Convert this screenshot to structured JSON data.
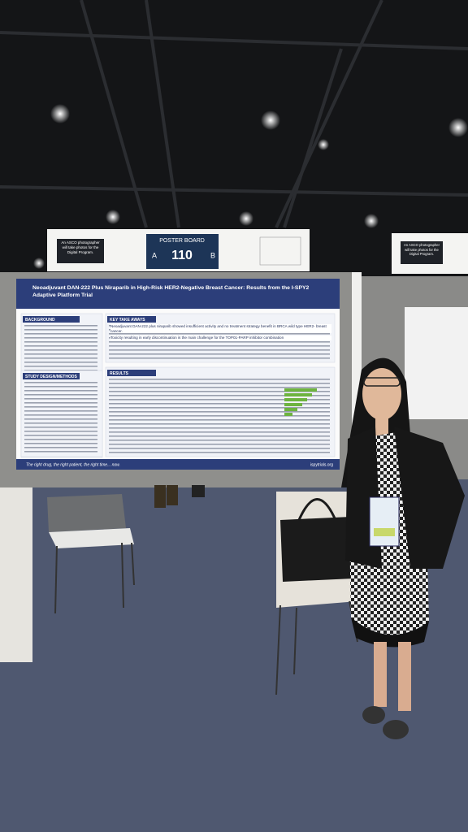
{
  "signs": {
    "left_note": "An ASCO photographer will take photos for the Digital Program.",
    "board_label": "POSTER BOARD",
    "side_a": "A",
    "board_number": "110",
    "side_b": "B",
    "right_note": "An ASCO photographer will take photos for the Digital Program."
  },
  "poster": {
    "title": "Neoadjuvant DAN-222 Plus Niraparib in High-Risk HER2-Negative Breast Cancer: Results from the I-SPY2 Adaptive Platform Trial",
    "sections": [
      "BACKGROUND",
      "KEY TAKE AWAYS",
      "RESULTS",
      "STUDY DESIGN/METHODS"
    ],
    "takeaways": [
      "Neoadjuvant DAN-222 plus niraparib showed insufficient activity and no treatment strategy benefit in BRCA wild type HER2- breast cancer.",
      "Toxicity resulting in early discontinuation is the main challenge for the TOP01-PARP inhibitor combination"
    ],
    "footer": "The right drug, the right patient, the right time... now.",
    "website": "ispytrials.org"
  }
}
